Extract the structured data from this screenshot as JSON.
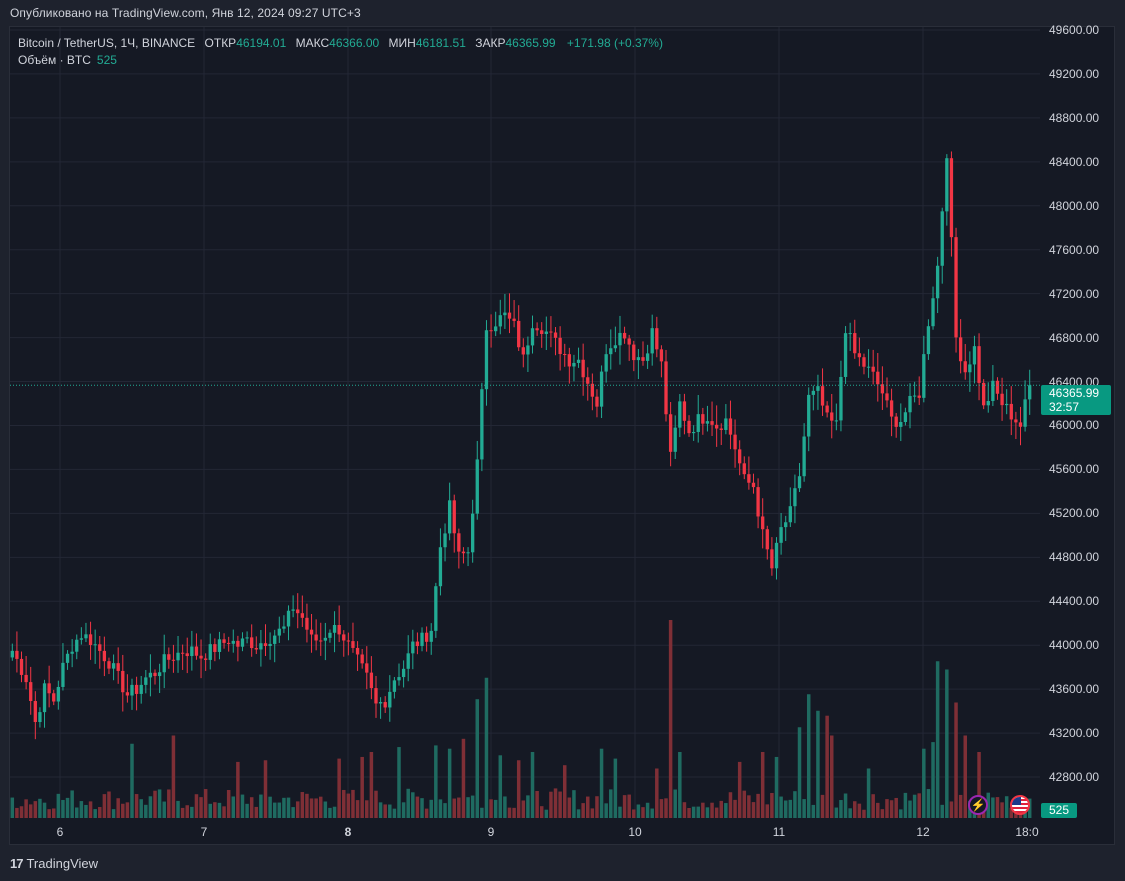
{
  "header": {
    "published": "Опубликовано на TradingView.com, Янв 12, 2024 09:27 UTC+3"
  },
  "legend": {
    "symbol": "Bitcoin / TetherUS, 1Ч, BINANCE",
    "open_label": "ОТКР",
    "open": "46194.01",
    "high_label": "МАКС",
    "high": "46366.00",
    "low_label": "МИН",
    "low": "46181.51",
    "close_label": "ЗАКР",
    "close": "46365.99",
    "change": "+171.98 (+0.37%)"
  },
  "volume_legend": {
    "label": "Объём · BTC",
    "value": "525"
  },
  "price_tag": {
    "price": "46365.99",
    "countdown": "32:57"
  },
  "volume_tag": "525",
  "colors": {
    "up": "#22ab94",
    "down": "#f23645",
    "up_volume": "#1f6b61",
    "down_volume": "#7f2f36",
    "background": "#151924",
    "grid": "#232735"
  },
  "footer": {
    "brand": "TradingView",
    "logo": "17"
  },
  "icons": {
    "bolt": "lightning-icon",
    "flag": "us-flag-icon"
  },
  "chart_data": {
    "type": "candlestick",
    "symbol": "Bitcoin / TetherUS",
    "interval": "1H",
    "exchange": "BINANCE",
    "y_ticks": [
      "49600.00",
      "49200.00",
      "48800.00",
      "48400.00",
      "48000.00",
      "47600.00",
      "47200.00",
      "46800.00",
      "46400.00",
      "46000.00",
      "45600.00",
      "45200.00",
      "44800.00",
      "44400.00",
      "44000.00",
      "43600.00",
      "43200.00",
      "42800.00"
    ],
    "x_ticks": [
      {
        "label": "6",
        "bold": false
      },
      {
        "label": "7",
        "bold": false
      },
      {
        "label": "8",
        "bold": true
      },
      {
        "label": "9",
        "bold": false
      },
      {
        "label": "10",
        "bold": false
      },
      {
        "label": "11",
        "bold": false
      },
      {
        "label": "12",
        "bold": false
      },
      {
        "label": "18:0",
        "bold": false
      }
    ],
    "ylim": [
      42500,
      49700
    ],
    "last_price": 46365.99,
    "anchors": [
      [
        0,
        43950
      ],
      [
        3,
        43700
      ],
      [
        5,
        43300
      ],
      [
        7,
        43600
      ],
      [
        9,
        43500
      ],
      [
        11,
        43800
      ],
      [
        13,
        44000
      ],
      [
        15,
        44100
      ],
      [
        17,
        44050
      ],
      [
        19,
        43950
      ],
      [
        21,
        43850
      ],
      [
        23,
        43700
      ],
      [
        25,
        43550
      ],
      [
        27,
        43600
      ],
      [
        29,
        43700
      ],
      [
        31,
        43750
      ],
      [
        33,
        43850
      ],
      [
        35,
        43900
      ],
      [
        37,
        43950
      ],
      [
        39,
        43950
      ],
      [
        41,
        43900
      ],
      [
        43,
        43950
      ],
      [
        45,
        44000
      ],
      [
        47,
        44050
      ],
      [
        49,
        44000
      ],
      [
        51,
        44050
      ],
      [
        53,
        44000
      ],
      [
        55,
        44050
      ],
      [
        57,
        44100
      ],
      [
        59,
        44150
      ],
      [
        61,
        44350
      ],
      [
        63,
        44250
      ],
      [
        65,
        44050
      ],
      [
        67,
        44050
      ],
      [
        69,
        44150
      ],
      [
        71,
        44150
      ],
      [
        73,
        44000
      ],
      [
        75,
        43850
      ],
      [
        77,
        43700
      ],
      [
        79,
        43450
      ],
      [
        81,
        43500
      ],
      [
        83,
        43700
      ],
      [
        85,
        43800
      ],
      [
        87,
        44000
      ],
      [
        89,
        44050
      ],
      [
        91,
        44150
      ],
      [
        93,
        44900
      ],
      [
        95,
        45250
      ],
      [
        97,
        44800
      ],
      [
        99,
        44850
      ],
      [
        101,
        45650
      ],
      [
        103,
        46900
      ],
      [
        105,
        46950
      ],
      [
        107,
        47000
      ],
      [
        109,
        46900
      ],
      [
        111,
        46600
      ],
      [
        113,
        46950
      ],
      [
        115,
        46900
      ],
      [
        117,
        46800
      ],
      [
        119,
        46700
      ],
      [
        121,
        46600
      ],
      [
        123,
        46600
      ],
      [
        125,
        46400
      ],
      [
        127,
        46200
      ],
      [
        129,
        46700
      ],
      [
        131,
        46800
      ],
      [
        133,
        46850
      ],
      [
        135,
        46650
      ],
      [
        137,
        46600
      ],
      [
        139,
        46850
      ],
      [
        141,
        46550
      ],
      [
        143,
        45700
      ],
      [
        145,
        46200
      ],
      [
        147,
        45950
      ],
      [
        149,
        46050
      ],
      [
        151,
        46100
      ],
      [
        153,
        46000
      ],
      [
        155,
        46050
      ],
      [
        157,
        45800
      ],
      [
        159,
        45500
      ],
      [
        161,
        45450
      ],
      [
        163,
        45000
      ],
      [
        165,
        44700
      ],
      [
        167,
        45050
      ],
      [
        169,
        45200
      ],
      [
        171,
        45550
      ],
      [
        173,
        46250
      ],
      [
        175,
        46300
      ],
      [
        177,
        46050
      ],
      [
        179,
        46000
      ],
      [
        181,
        46900
      ],
      [
        183,
        46650
      ],
      [
        185,
        46550
      ],
      [
        187,
        46450
      ],
      [
        189,
        46300
      ],
      [
        191,
        46050
      ],
      [
        193,
        46050
      ],
      [
        195,
        46200
      ],
      [
        197,
        46300
      ],
      [
        199,
        46950
      ],
      [
        201,
        47450
      ],
      [
        203,
        48500
      ],
      [
        205,
        46800
      ],
      [
        207,
        46500
      ],
      [
        209,
        46700
      ],
      [
        211,
        46150
      ],
      [
        213,
        46350
      ],
      [
        215,
        46200
      ],
      [
        217,
        46100
      ],
      [
        219,
        46000
      ],
      [
        221,
        46365
      ]
    ],
    "volume": {
      "ylim": [
        0,
        12000
      ],
      "spikes": [
        [
          26,
          4500
        ],
        [
          35,
          5000
        ],
        [
          49,
          3400
        ],
        [
          55,
          3500
        ],
        [
          71,
          3600
        ],
        [
          76,
          3700
        ],
        [
          78,
          4000
        ],
        [
          84,
          4300
        ],
        [
          92,
          4400
        ],
        [
          95,
          4200
        ],
        [
          98,
          4800
        ],
        [
          101,
          7200
        ],
        [
          103,
          8500
        ],
        [
          106,
          3800
        ],
        [
          110,
          3500
        ],
        [
          113,
          4000
        ],
        [
          120,
          3200
        ],
        [
          128,
          4200
        ],
        [
          131,
          3600
        ],
        [
          140,
          3000
        ],
        [
          143,
          12000
        ],
        [
          145,
          4000
        ],
        [
          158,
          3400
        ],
        [
          163,
          4000
        ],
        [
          166,
          3700
        ],
        [
          171,
          5500
        ],
        [
          173,
          7500
        ],
        [
          175,
          6500
        ],
        [
          177,
          6200
        ],
        [
          178,
          5000
        ],
        [
          186,
          3000
        ],
        [
          198,
          4200
        ],
        [
          200,
          4600
        ],
        [
          201,
          9500
        ],
        [
          203,
          9000
        ],
        [
          205,
          7000
        ],
        [
          207,
          5000
        ],
        [
          210,
          4000
        ]
      ]
    }
  }
}
